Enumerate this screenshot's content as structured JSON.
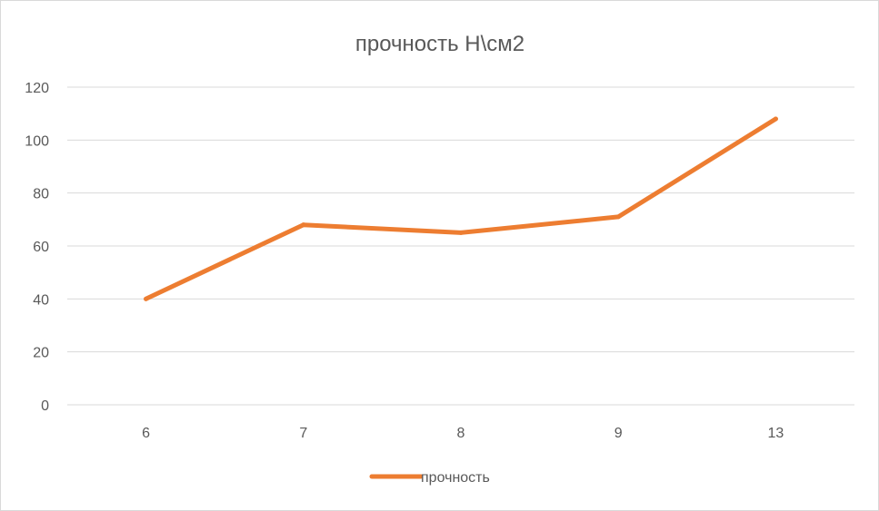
{
  "chart_data": {
    "type": "line",
    "title": "прочность Н\\см2",
    "categories": [
      "6",
      "7",
      "8",
      "9",
      "13"
    ],
    "series": [
      {
        "name": "прочность",
        "values": [
          40,
          68,
          65,
          71,
          108
        ]
      }
    ],
    "ylim": [
      0,
      120
    ],
    "yticks": [
      "0",
      "20",
      "40",
      "60",
      "80",
      "100",
      "120"
    ],
    "grid": true,
    "legend_position": "bottom",
    "colors": {
      "series": "#ED7D31",
      "grid": "#D9D9D9",
      "text": "#595959"
    }
  }
}
